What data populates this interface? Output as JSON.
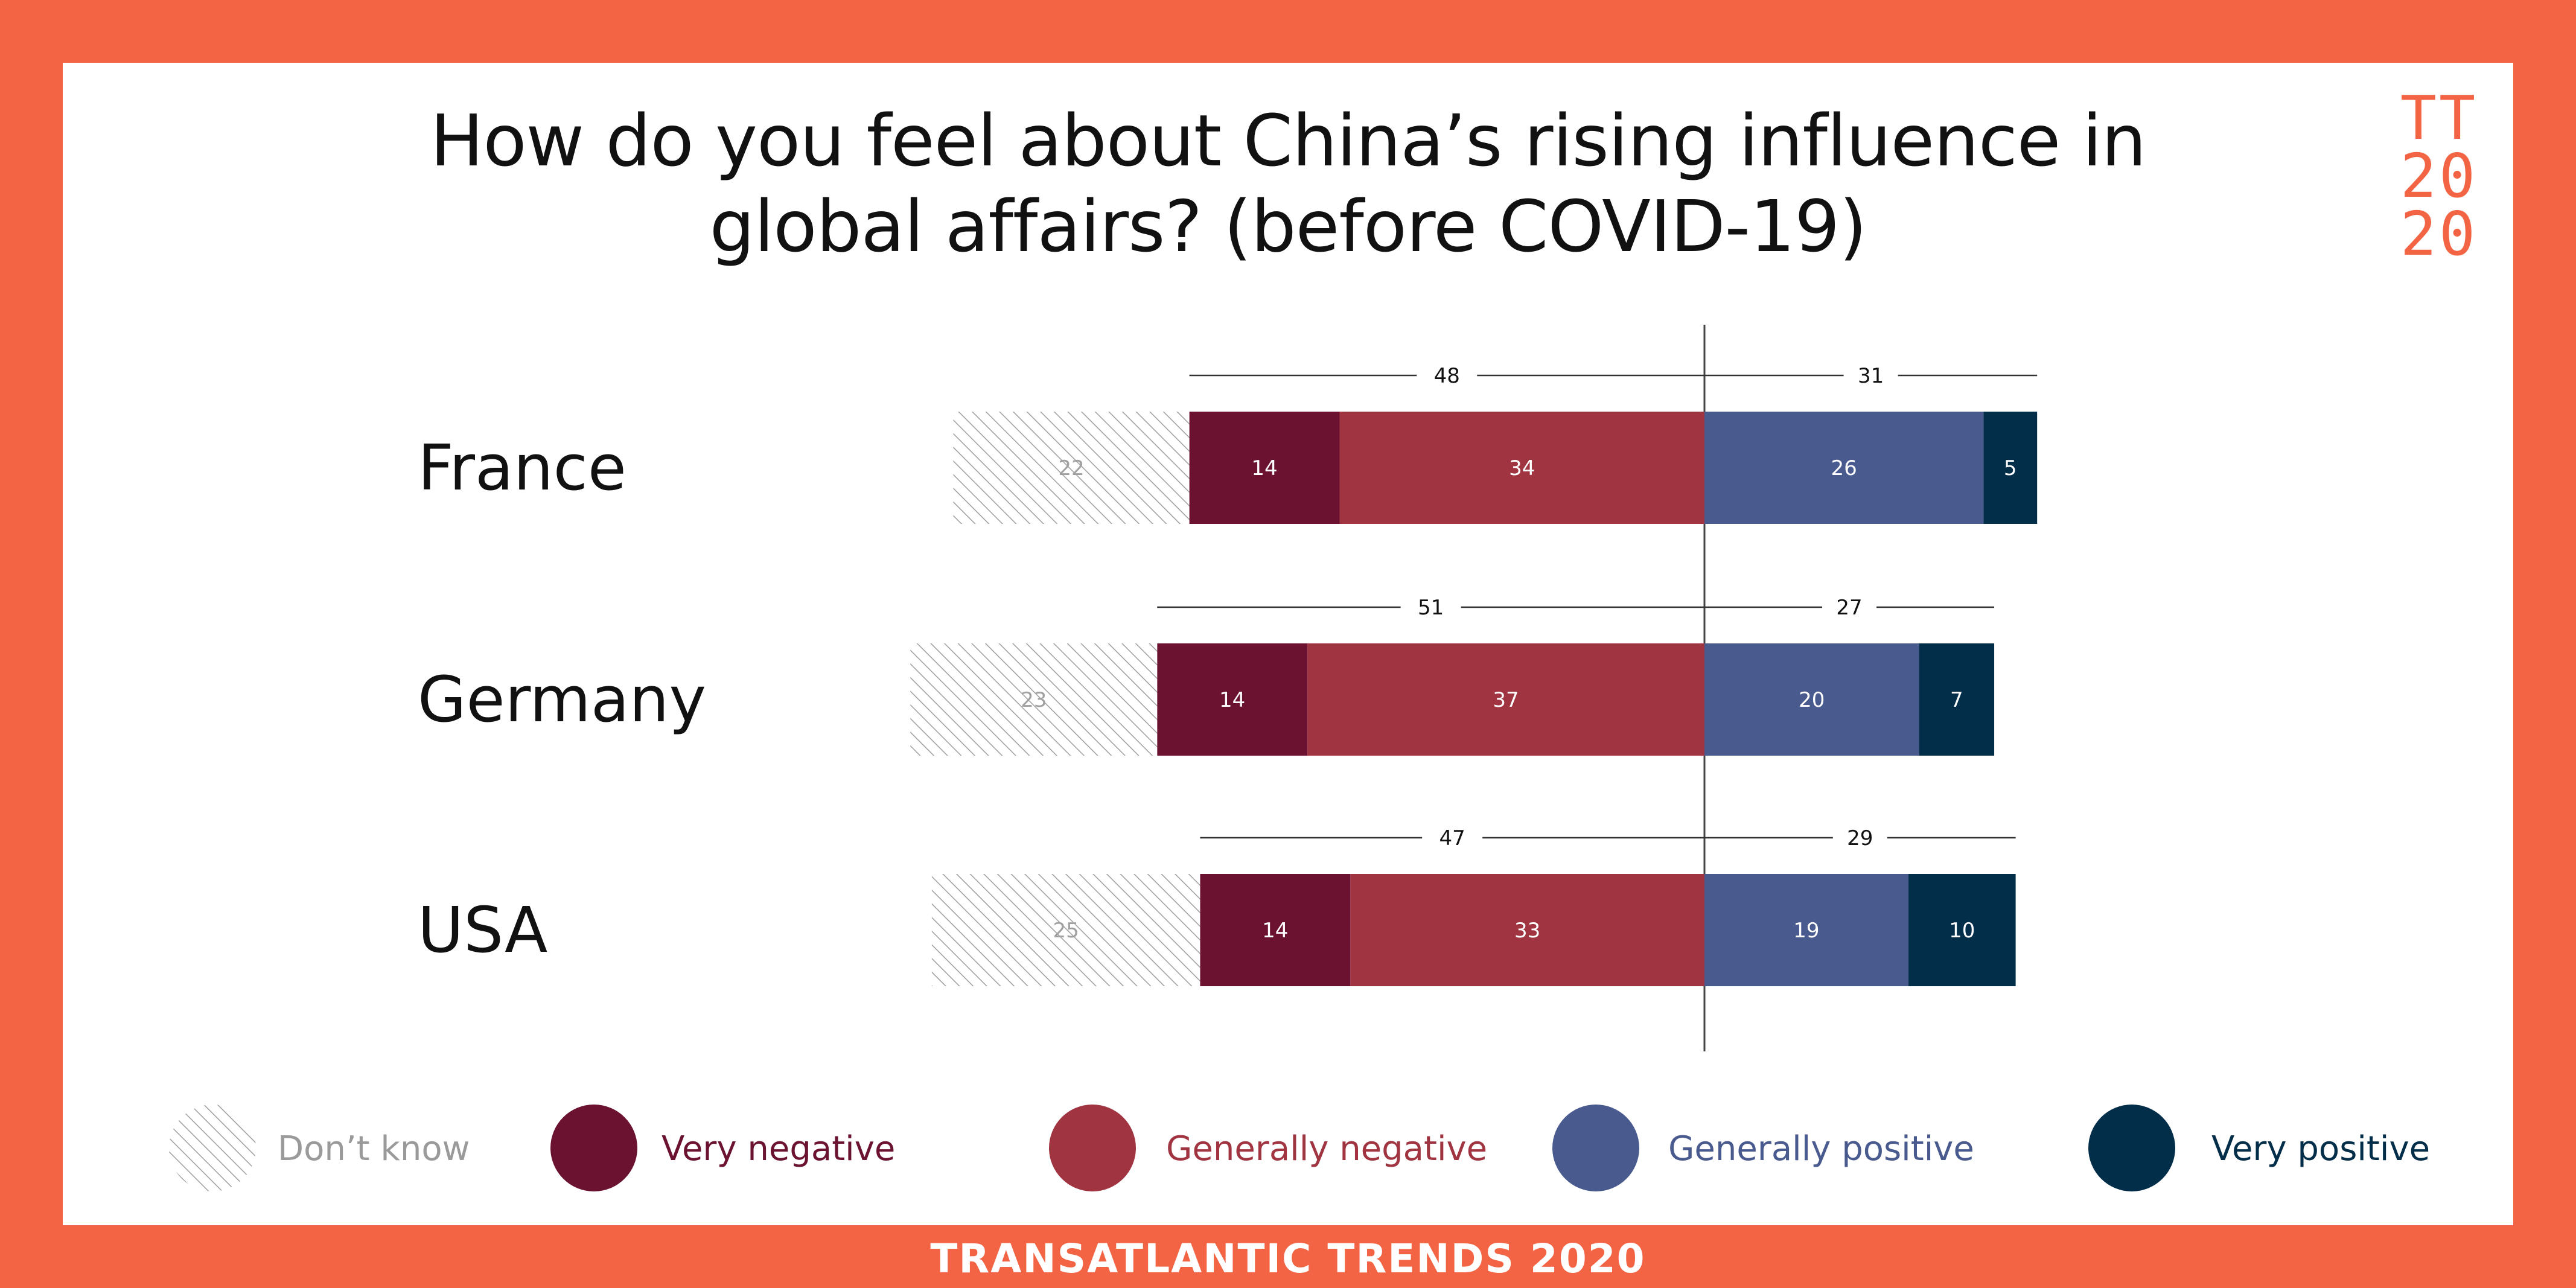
{
  "title_lines": [
    "How do you feel about China’s rising influence in",
    "global affairs? (before COVID-19)"
  ],
  "logo_lines": [
    "TT",
    "20",
    "20"
  ],
  "footer": "TRANSATLANTIC TRENDS 2020",
  "colors": {
    "background": "#f26444",
    "dont_know": "#b9b9b9",
    "very_negative": "#6b1230",
    "generally_negative": "#a03541",
    "generally_positive": "#495a8e",
    "very_positive": "#032e4a"
  },
  "chart_data": {
    "type": "bar",
    "orientation": "horizontal-diverging",
    "categories": [
      "France",
      "Germany",
      "USA"
    ],
    "series": [
      {
        "name": "Don’t know",
        "values": [
          22,
          23,
          25
        ],
        "color": "#b9b9b9",
        "pattern": "hatched"
      },
      {
        "name": "Very negative",
        "values": [
          14,
          14,
          14
        ],
        "color": "#6b1230"
      },
      {
        "name": "Generally negative",
        "values": [
          34,
          37,
          33
        ],
        "color": "#a03541"
      },
      {
        "name": "Generally positive",
        "values": [
          26,
          20,
          19
        ],
        "color": "#495a8e"
      },
      {
        "name": "Very positive",
        "values": [
          5,
          7,
          10
        ],
        "color": "#032e4a"
      }
    ],
    "negative_totals": [
      48,
      51,
      47
    ],
    "positive_totals": [
      31,
      27,
      29
    ],
    "legend": [
      {
        "label": "Don’t know",
        "color": "#9a9a9a"
      },
      {
        "label": "Very negative",
        "color": "#6b1230"
      },
      {
        "label": "Generally negative",
        "color": "#a03541"
      },
      {
        "label": "Generally positive",
        "color": "#495a8e"
      },
      {
        "label": "Very positive",
        "color": "#032e4a"
      }
    ],
    "legend_position": "bottom",
    "grid": false
  }
}
